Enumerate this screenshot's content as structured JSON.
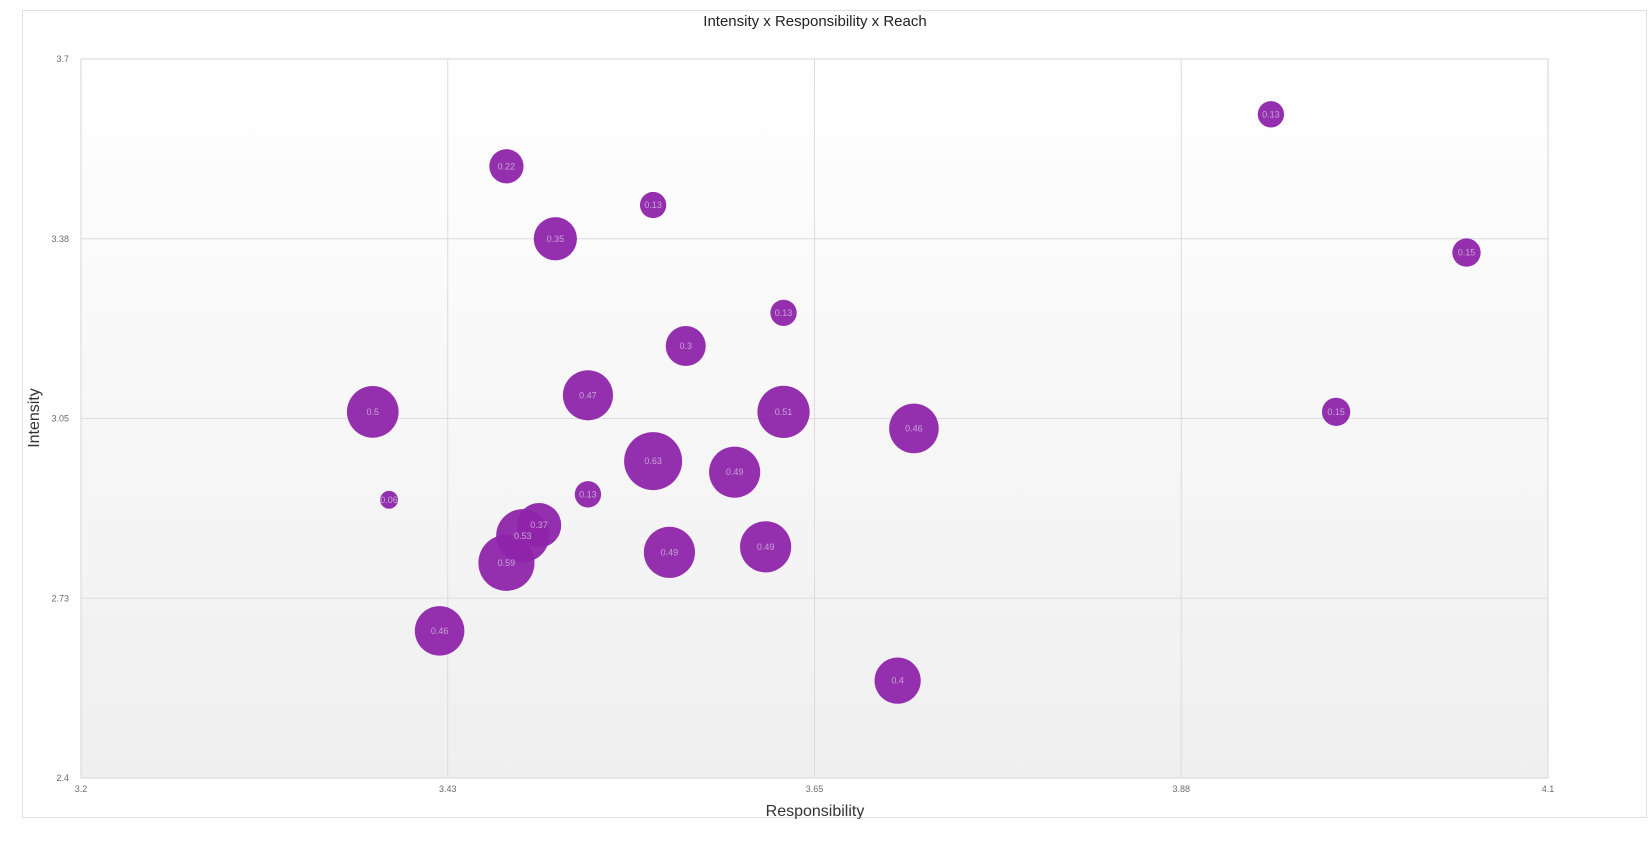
{
  "chart_data": {
    "type": "scatter",
    "title": "Intensity x Responsibility x Reach",
    "xlabel": "Responsibility",
    "ylabel": "Intensity",
    "xlim": [
      3.2,
      4.1
    ],
    "ylim": [
      2.4,
      3.7
    ],
    "x_ticks": [
      "3.2",
      "3.43",
      "3.65",
      "3.88",
      "4.1"
    ],
    "y_ticks": [
      "3.7",
      "3.38",
      "3.05",
      "2.73",
      "2.4"
    ],
    "grid": true,
    "bubble_color": "#8e24aa",
    "size_label": "Reach",
    "points": [
      {
        "x": 3.389,
        "y": 2.903,
        "size": 0.06,
        "label": "0.06"
      },
      {
        "x": 3.379,
        "y": 3.062,
        "size": 0.5,
        "label": "0.5"
      },
      {
        "x": 3.42,
        "y": 2.666,
        "size": 0.46,
        "label": "0.46"
      },
      {
        "x": 3.461,
        "y": 2.789,
        "size": 0.59,
        "label": "0.59"
      },
      {
        "x": 3.471,
        "y": 2.838,
        "size": 0.53,
        "label": "0.53"
      },
      {
        "x": 3.481,
        "y": 2.857,
        "size": 0.37,
        "label": "0.37"
      },
      {
        "x": 3.461,
        "y": 3.506,
        "size": 0.22,
        "label": "0.22"
      },
      {
        "x": 3.491,
        "y": 3.375,
        "size": 0.35,
        "label": "0.35"
      },
      {
        "x": 3.511,
        "y": 3.092,
        "size": 0.47,
        "label": "0.47"
      },
      {
        "x": 3.511,
        "y": 2.913,
        "size": 0.13,
        "label": "0.13"
      },
      {
        "x": 3.551,
        "y": 3.436,
        "size": 0.13,
        "label": "0.13"
      },
      {
        "x": 3.551,
        "y": 2.973,
        "size": 0.63,
        "label": "0.63"
      },
      {
        "x": 3.561,
        "y": 2.808,
        "size": 0.49,
        "label": "0.49"
      },
      {
        "x": 3.571,
        "y": 3.181,
        "size": 0.3,
        "label": "0.3"
      },
      {
        "x": 3.601,
        "y": 2.953,
        "size": 0.49,
        "label": "0.49"
      },
      {
        "x": 3.62,
        "y": 2.818,
        "size": 0.49,
        "label": "0.49"
      },
      {
        "x": 3.631,
        "y": 3.241,
        "size": 0.13,
        "label": "0.13"
      },
      {
        "x": 3.631,
        "y": 3.062,
        "size": 0.51,
        "label": "0.51"
      },
      {
        "x": 3.701,
        "y": 2.576,
        "size": 0.4,
        "label": "0.4"
      },
      {
        "x": 3.711,
        "y": 3.032,
        "size": 0.46,
        "label": "0.46"
      },
      {
        "x": 3.93,
        "y": 3.6,
        "size": 0.13,
        "label": "0.13"
      },
      {
        "x": 3.97,
        "y": 3.062,
        "size": 0.15,
        "label": "0.15"
      },
      {
        "x": 4.05,
        "y": 3.35,
        "size": 0.15,
        "label": "0.15"
      }
    ]
  }
}
